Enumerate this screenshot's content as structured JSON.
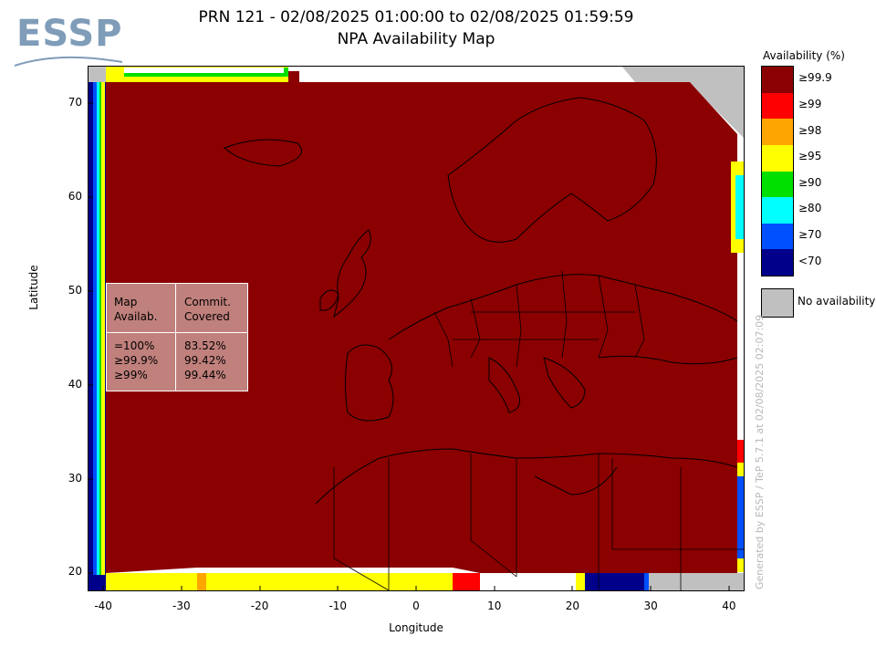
{
  "logo": {
    "text": "ESSP"
  },
  "title": {
    "line1": "PRN 121 - 02/08/2025 01:00:00 to 02/08/2025 01:59:59",
    "line2": "NPA Availability Map"
  },
  "stats_table": {
    "header_left": "Map\nAvailab.",
    "header_right": "Commit.\nCovered",
    "rows_left": "=100%\n≥99.9%\n≥99%",
    "rows_right": "83.52%\n99.42%\n99.44%"
  },
  "legend": {
    "title": "Availability (%)",
    "items": [
      {
        "label": "≥99.9",
        "color": "#8b0000"
      },
      {
        "label": "≥99",
        "color": "#ff0000"
      },
      {
        "label": "≥98",
        "color": "#ffa500"
      },
      {
        "label": "≥95",
        "color": "#ffff00"
      },
      {
        "label": "≥90",
        "color": "#00e000"
      },
      {
        "label": "≥80",
        "color": "#00ffff"
      },
      {
        "label": "≥70",
        "color": "#0050ff"
      },
      {
        "label": "<70",
        "color": "#00008b"
      }
    ],
    "no_availability": {
      "label": "No availability",
      "color": "#c0c0c0"
    }
  },
  "watermark": "Generated by ESSP / TeP 5.7.1 at 02/08/2025 02:07:09",
  "chart_data": {
    "type": "heatmap",
    "title": "PRN 121 - 02/08/2025 01:00:00 to 02/08/2025 01:59:59",
    "subtitle": "NPA Availability Map",
    "xlabel": "Longitude",
    "ylabel": "Latitude",
    "xlim": [
      -42,
      42
    ],
    "ylim": [
      18,
      74
    ],
    "xticks": [
      -40,
      -30,
      -20,
      -10,
      0,
      10,
      20,
      30,
      40
    ],
    "yticks": [
      20,
      30,
      40,
      50,
      60,
      70
    ],
    "dominant_value": "≥99.9",
    "colorbar": [
      "≥99.9",
      "≥99",
      "≥98",
      "≥95",
      "≥90",
      "≥80",
      "≥70",
      "<70",
      "No availability"
    ]
  }
}
